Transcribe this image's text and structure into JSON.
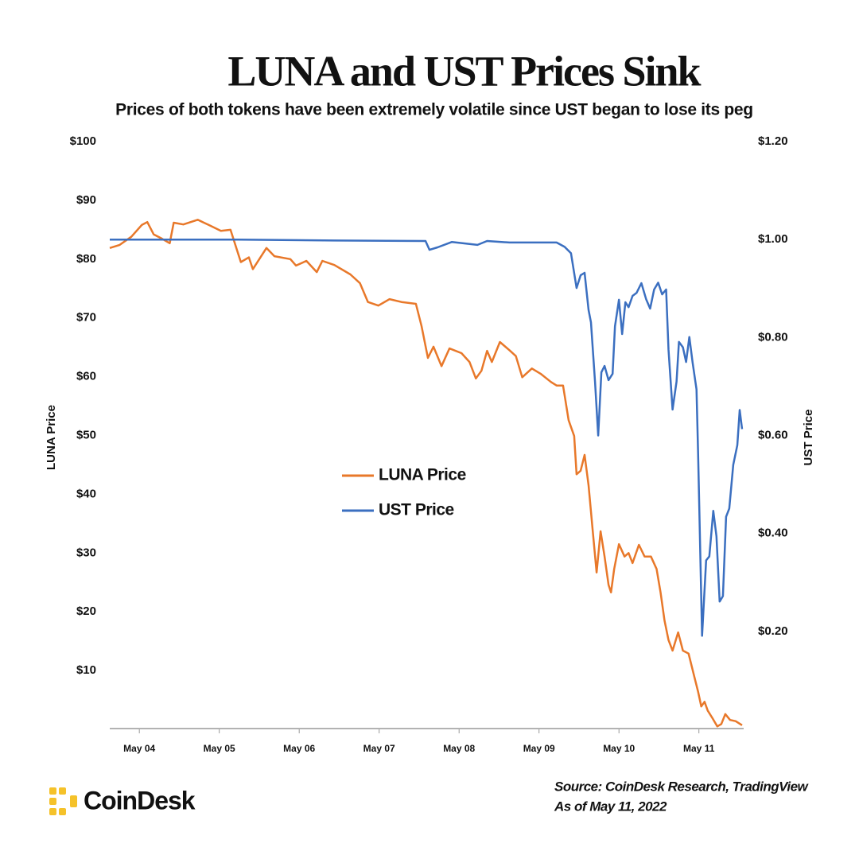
{
  "chart_data": {
    "type": "line",
    "title": "LUNA and UST Prices Sink",
    "subtitle": "Prices of both tokens have been extremely volatile since UST began to lose its peg",
    "ylabel": "LUNA Price",
    "y2label": "UST Price",
    "source": "Source: CoinDesk Research, TradingView",
    "date_note": "As of May 11, 2022",
    "brand": "CoinDesk",
    "xlim": [
      3.63,
      11.56
    ],
    "xticks": [
      {
        "value": 4,
        "label": "May 04"
      },
      {
        "value": 5,
        "label": "May 05"
      },
      {
        "value": 6,
        "label": "May 06"
      },
      {
        "value": 7,
        "label": "May 07"
      },
      {
        "value": 8,
        "label": "May 08"
      },
      {
        "value": 9,
        "label": "May 09"
      },
      {
        "value": 10,
        "label": "May 10"
      },
      {
        "value": 11,
        "label": "May 11"
      }
    ],
    "ylim": [
      0,
      100
    ],
    "yticks": [
      {
        "value": 10,
        "label": "$10"
      },
      {
        "value": 20,
        "label": "$20"
      },
      {
        "value": 30,
        "label": "$30"
      },
      {
        "value": 40,
        "label": "$40"
      },
      {
        "value": 50,
        "label": "$50"
      },
      {
        "value": 60,
        "label": "$60"
      },
      {
        "value": 70,
        "label": "$70"
      },
      {
        "value": 80,
        "label": "$80"
      },
      {
        "value": 90,
        "label": "$90"
      },
      {
        "value": 100,
        "label": "$100"
      }
    ],
    "y2lim": [
      0,
      1.2
    ],
    "y2ticks": [
      {
        "value": 0.2,
        "label": "$0.20"
      },
      {
        "value": 0.4,
        "label": "$0.40"
      },
      {
        "value": 0.6,
        "label": "$0.60"
      },
      {
        "value": 0.8,
        "label": "$0.80"
      },
      {
        "value": 1.0,
        "label": "$1.00"
      },
      {
        "value": 1.2,
        "label": "$1.20"
      }
    ],
    "series": [
      {
        "name": "LUNA Price",
        "color": "#e8782a",
        "x": [
          3.63,
          3.75,
          3.9,
          4.03,
          4.1,
          4.18,
          4.28,
          4.38,
          4.43,
          4.55,
          4.73,
          4.87,
          5.02,
          5.14,
          5.27,
          5.37,
          5.42,
          5.59,
          5.69,
          5.89,
          5.96,
          6.09,
          6.22,
          6.29,
          6.44,
          6.64,
          6.76,
          6.86,
          6.99,
          7.13,
          7.28,
          7.46,
          7.53,
          7.61,
          7.68,
          7.78,
          7.88,
          8.03,
          8.13,
          8.21,
          8.28,
          8.35,
          8.41,
          8.51,
          8.63,
          8.71,
          8.79,
          8.91,
          9.02,
          9.15,
          9.22,
          9.3,
          9.37,
          9.44,
          9.47,
          9.52,
          9.57,
          9.62,
          9.67,
          9.72,
          9.77,
          9.82,
          9.87,
          9.9,
          9.94,
          10.0,
          10.07,
          10.12,
          10.17,
          10.25,
          10.32,
          10.4,
          10.47,
          10.52,
          10.57,
          10.62,
          10.67,
          10.74,
          10.8,
          10.87,
          10.94,
          10.99,
          11.03,
          11.07,
          11.11,
          11.17,
          11.23,
          11.28,
          11.33,
          11.39,
          11.46,
          11.54
        ],
        "values": [
          81.9,
          82.4,
          83.8,
          85.8,
          86.3,
          84.2,
          83.5,
          82.7,
          86.2,
          85.9,
          86.7,
          85.8,
          84.8,
          85.0,
          79.5,
          80.3,
          78.3,
          81.9,
          80.5,
          80.0,
          78.9,
          79.7,
          77.8,
          79.7,
          79.0,
          77.4,
          75.9,
          72.7,
          72.1,
          73.2,
          72.7,
          72.4,
          68.6,
          63.2,
          65.1,
          61.8,
          64.8,
          64.0,
          62.5,
          59.7,
          61.0,
          64.4,
          62.5,
          65.9,
          64.5,
          63.5,
          59.9,
          61.4,
          60.5,
          59.1,
          58.5,
          58.5,
          52.6,
          49.9,
          43.4,
          44.0,
          46.7,
          41.5,
          34.1,
          26.7,
          33.7,
          29.4,
          24.6,
          23.3,
          27.3,
          31.5,
          29.4,
          30.0,
          28.3,
          31.4,
          29.4,
          29.4,
          27.3,
          23.3,
          18.5,
          15.2,
          13.4,
          16.5,
          13.4,
          12.9,
          9.1,
          6.4,
          3.9,
          4.7,
          3.2,
          1.9,
          0.5,
          0.9,
          2.6,
          1.6,
          1.4,
          0.7
        ]
      },
      {
        "name": "UST Price",
        "color": "#3b6fc0",
        "axis": "y2",
        "x": [
          3.63,
          5.24,
          6.44,
          7.58,
          7.63,
          7.73,
          7.91,
          8.23,
          8.35,
          8.63,
          9.22,
          9.32,
          9.4,
          9.47,
          9.52,
          9.57,
          9.62,
          9.65,
          9.7,
          9.74,
          9.78,
          9.82,
          9.87,
          9.92,
          9.95,
          10.0,
          10.04,
          10.08,
          10.12,
          10.17,
          10.22,
          10.28,
          10.34,
          10.39,
          10.44,
          10.49,
          10.54,
          10.59,
          10.62,
          10.67,
          10.72,
          10.75,
          10.8,
          10.84,
          10.88,
          10.92,
          10.97,
          10.99,
          11.04,
          11.09,
          11.13,
          11.18,
          11.22,
          11.26,
          11.3,
          11.34,
          11.38,
          11.43,
          11.48,
          11.51,
          11.54
        ],
        "values": [
          1.0,
          1.0,
          0.998,
          0.997,
          0.979,
          0.984,
          0.995,
          0.989,
          0.997,
          0.994,
          0.994,
          0.985,
          0.972,
          0.901,
          0.927,
          0.932,
          0.856,
          0.831,
          0.71,
          0.6,
          0.729,
          0.742,
          0.713,
          0.726,
          0.823,
          0.877,
          0.807,
          0.872,
          0.862,
          0.885,
          0.891,
          0.911,
          0.878,
          0.859,
          0.898,
          0.912,
          0.888,
          0.898,
          0.775,
          0.653,
          0.71,
          0.791,
          0.78,
          0.75,
          0.801,
          0.75,
          0.694,
          0.564,
          0.191,
          0.345,
          0.353,
          0.446,
          0.394,
          0.261,
          0.272,
          0.434,
          0.451,
          0.54,
          0.58,
          0.652,
          0.613
        ]
      }
    ]
  }
}
